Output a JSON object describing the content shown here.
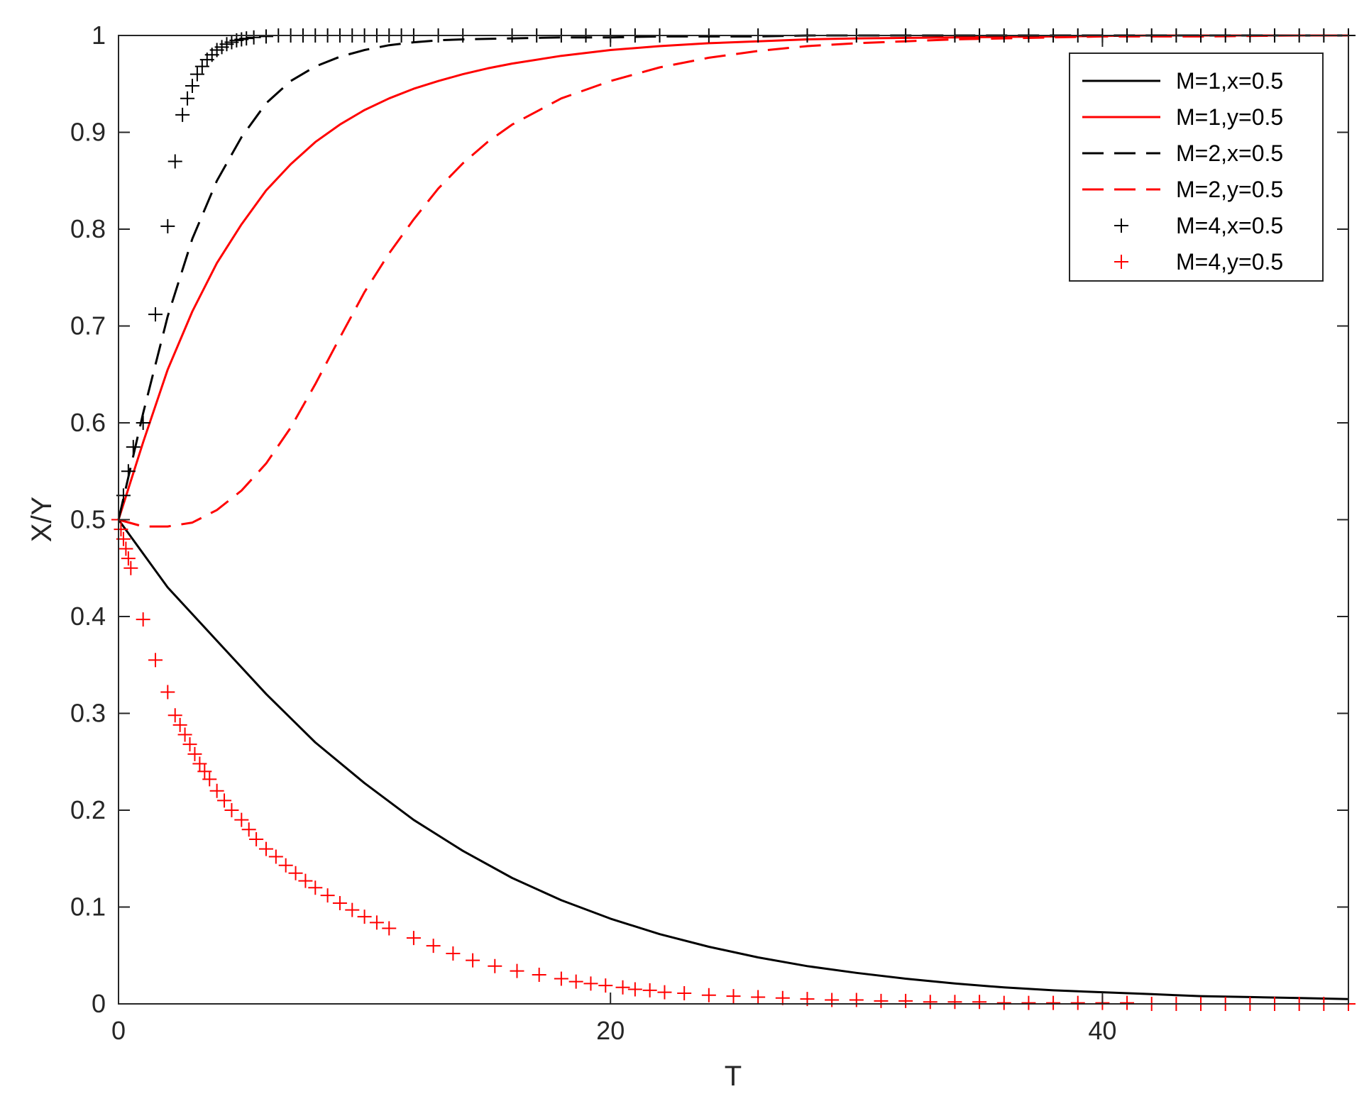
{
  "chart_data": {
    "type": "line",
    "title": "",
    "xlabel": "T",
    "ylabel": "X/Y",
    "xlim": [
      0,
      50
    ],
    "ylim": [
      0,
      1
    ],
    "xticks": [
      0,
      20,
      40
    ],
    "xtick_labels": [
      "0",
      "20",
      "40"
    ],
    "yticks": [
      0,
      0.1,
      0.2,
      0.3,
      0.4,
      0.5,
      0.6,
      0.7,
      0.8,
      0.9,
      1
    ],
    "ytick_labels": [
      "0",
      "0.1",
      "0.2",
      "0.3",
      "0.4",
      "0.5",
      "0.6",
      "0.7",
      "0.8",
      "0.9",
      "1"
    ],
    "grid": false,
    "legend_position": "top-right",
    "series": [
      {
        "name": "M=1,x=0.5",
        "color": "#000000",
        "style": "solid",
        "x": [
          0,
          2,
          4,
          6,
          8,
          10,
          12,
          14,
          16,
          18,
          20,
          22,
          24,
          26,
          28,
          30,
          32,
          34,
          36,
          38,
          40,
          42,
          44,
          46,
          48,
          50
        ],
        "y": [
          0.5,
          0.43,
          0.375,
          0.32,
          0.27,
          0.228,
          0.19,
          0.158,
          0.13,
          0.107,
          0.088,
          0.072,
          0.059,
          0.048,
          0.039,
          0.032,
          0.026,
          0.021,
          0.017,
          0.014,
          0.012,
          0.01,
          0.008,
          0.007,
          0.006,
          0.005
        ]
      },
      {
        "name": "M=1,y=0.5",
        "color": "#ff0000",
        "style": "solid",
        "x": [
          0,
          1,
          2,
          3,
          4,
          5,
          6,
          7,
          8,
          9,
          10,
          11,
          12,
          13,
          14,
          15,
          16,
          18,
          20,
          22,
          24,
          26,
          28,
          30,
          34,
          38,
          42,
          46,
          50
        ],
        "y": [
          0.5,
          0.58,
          0.655,
          0.715,
          0.765,
          0.805,
          0.84,
          0.867,
          0.89,
          0.908,
          0.923,
          0.935,
          0.945,
          0.953,
          0.96,
          0.966,
          0.971,
          0.979,
          0.985,
          0.989,
          0.992,
          0.994,
          0.996,
          0.997,
          0.998,
          0.999,
          1.0,
          1.0,
          1.0
        ]
      },
      {
        "name": "M=2,x=0.5",
        "color": "#000000",
        "style": "dashed",
        "x": [
          0,
          1,
          2,
          3,
          4,
          5,
          6,
          7,
          8,
          9,
          10,
          11,
          12,
          13,
          14,
          16,
          18,
          20,
          22,
          24,
          26,
          28,
          32,
          36,
          40,
          44,
          48,
          50
        ],
        "y": [
          0.5,
          0.61,
          0.71,
          0.79,
          0.85,
          0.895,
          0.93,
          0.953,
          0.968,
          0.978,
          0.985,
          0.99,
          0.993,
          0.995,
          0.996,
          0.997,
          0.998,
          0.998,
          0.999,
          0.999,
          0.999,
          1.0,
          1.0,
          1.0,
          1.0,
          1.0,
          1.0,
          1.0
        ]
      },
      {
        "name": "M=2,y=0.5",
        "color": "#ff0000",
        "style": "dashed",
        "x": [
          0,
          1,
          2,
          3,
          4,
          5,
          6,
          7,
          8,
          9,
          10,
          11,
          12,
          13,
          14,
          15,
          16,
          18,
          20,
          22,
          24,
          26,
          28,
          30,
          32,
          34,
          36,
          38,
          40,
          44,
          48,
          50
        ],
        "y": [
          0.5,
          0.493,
          0.493,
          0.497,
          0.51,
          0.53,
          0.558,
          0.595,
          0.64,
          0.688,
          0.735,
          0.775,
          0.81,
          0.842,
          0.868,
          0.89,
          0.908,
          0.935,
          0.953,
          0.967,
          0.977,
          0.984,
          0.989,
          0.992,
          0.994,
          0.996,
          0.997,
          0.998,
          0.999,
          0.999,
          1.0,
          1.0
        ]
      },
      {
        "name": "M=4,x=0.5",
        "color": "#000000",
        "style": "plus",
        "x": [
          0,
          0.2,
          0.4,
          0.6,
          1,
          1.5,
          2,
          2.3,
          2.6,
          2.8,
          3,
          3.2,
          3.4,
          3.6,
          3.8,
          4,
          4.2,
          4.4,
          4.6,
          4.8,
          5,
          5.2,
          5.5,
          6,
          6.5,
          7,
          7.5,
          8,
          8.5,
          9,
          9.5,
          10,
          10.5,
          11,
          11.5,
          12,
          13,
          14,
          16,
          17,
          18,
          19,
          20,
          21,
          22,
          24,
          26,
          28,
          30,
          32,
          34,
          35,
          36,
          37,
          38,
          39,
          40,
          41,
          42,
          43,
          44,
          45,
          46,
          47,
          48,
          49,
          50
        ],
        "y": [
          0.5,
          0.525,
          0.55,
          0.575,
          0.6,
          0.712,
          0.803,
          0.87,
          0.918,
          0.935,
          0.948,
          0.96,
          0.968,
          0.975,
          0.98,
          0.985,
          0.988,
          0.991,
          0.993,
          0.995,
          0.996,
          0.997,
          0.998,
          0.999,
          1.0,
          1.0,
          1.0,
          1.0,
          1.0,
          1.0,
          1.0,
          1.0,
          1.0,
          1.0,
          1.0,
          1.0,
          1.0,
          1.0,
          1.0,
          1.0,
          1.0,
          1.0,
          1.0,
          1.0,
          1.0,
          1.0,
          1.0,
          1.0,
          1.0,
          1.0,
          1.0,
          1.0,
          1.0,
          1.0,
          1.0,
          1.0,
          1.0,
          1.0,
          1.0,
          1.0,
          1.0,
          1.0,
          1.0,
          1.0,
          1.0,
          1.0,
          1.0
        ]
      },
      {
        "name": "M=4,y=0.5",
        "color": "#ff0000",
        "style": "plus",
        "x": [
          0,
          0.1,
          0.2,
          0.3,
          0.4,
          0.5,
          1,
          1.5,
          2,
          2.3,
          2.5,
          2.7,
          2.9,
          3.1,
          3.3,
          3.5,
          3.7,
          4,
          4.3,
          4.6,
          5,
          5.3,
          5.6,
          6,
          6.4,
          6.8,
          7.2,
          7.6,
          8,
          8.5,
          9,
          9.5,
          10,
          10.5,
          11,
          12,
          12.8,
          13.6,
          14.4,
          15.3,
          16.2,
          17.1,
          18,
          18.6,
          19.2,
          19.8,
          20.5,
          21,
          21.6,
          22.2,
          23,
          24,
          25,
          26,
          27,
          28,
          29,
          30,
          31,
          32,
          33,
          34,
          35,
          36,
          37,
          38,
          39,
          40,
          41,
          42,
          43,
          44,
          45,
          46,
          47,
          48,
          49,
          50
        ],
        "y": [
          0.5,
          0.49,
          0.48,
          0.47,
          0.46,
          0.45,
          0.397,
          0.355,
          0.322,
          0.298,
          0.288,
          0.278,
          0.268,
          0.258,
          0.248,
          0.24,
          0.232,
          0.22,
          0.21,
          0.2,
          0.19,
          0.18,
          0.17,
          0.16,
          0.152,
          0.143,
          0.135,
          0.127,
          0.12,
          0.112,
          0.104,
          0.097,
          0.09,
          0.084,
          0.078,
          0.068,
          0.06,
          0.052,
          0.045,
          0.039,
          0.034,
          0.03,
          0.026,
          0.023,
          0.021,
          0.019,
          0.017,
          0.015,
          0.014,
          0.012,
          0.011,
          0.009,
          0.008,
          0.007,
          0.006,
          0.005,
          0.004,
          0.004,
          0.003,
          0.003,
          0.002,
          0.002,
          0.002,
          0.001,
          0.001,
          0.001,
          0.001,
          0.001,
          0.001,
          0.0,
          0.0,
          0.0,
          0.0,
          0.0,
          0.0,
          0.0,
          0.0,
          0.0
        ]
      }
    ]
  }
}
